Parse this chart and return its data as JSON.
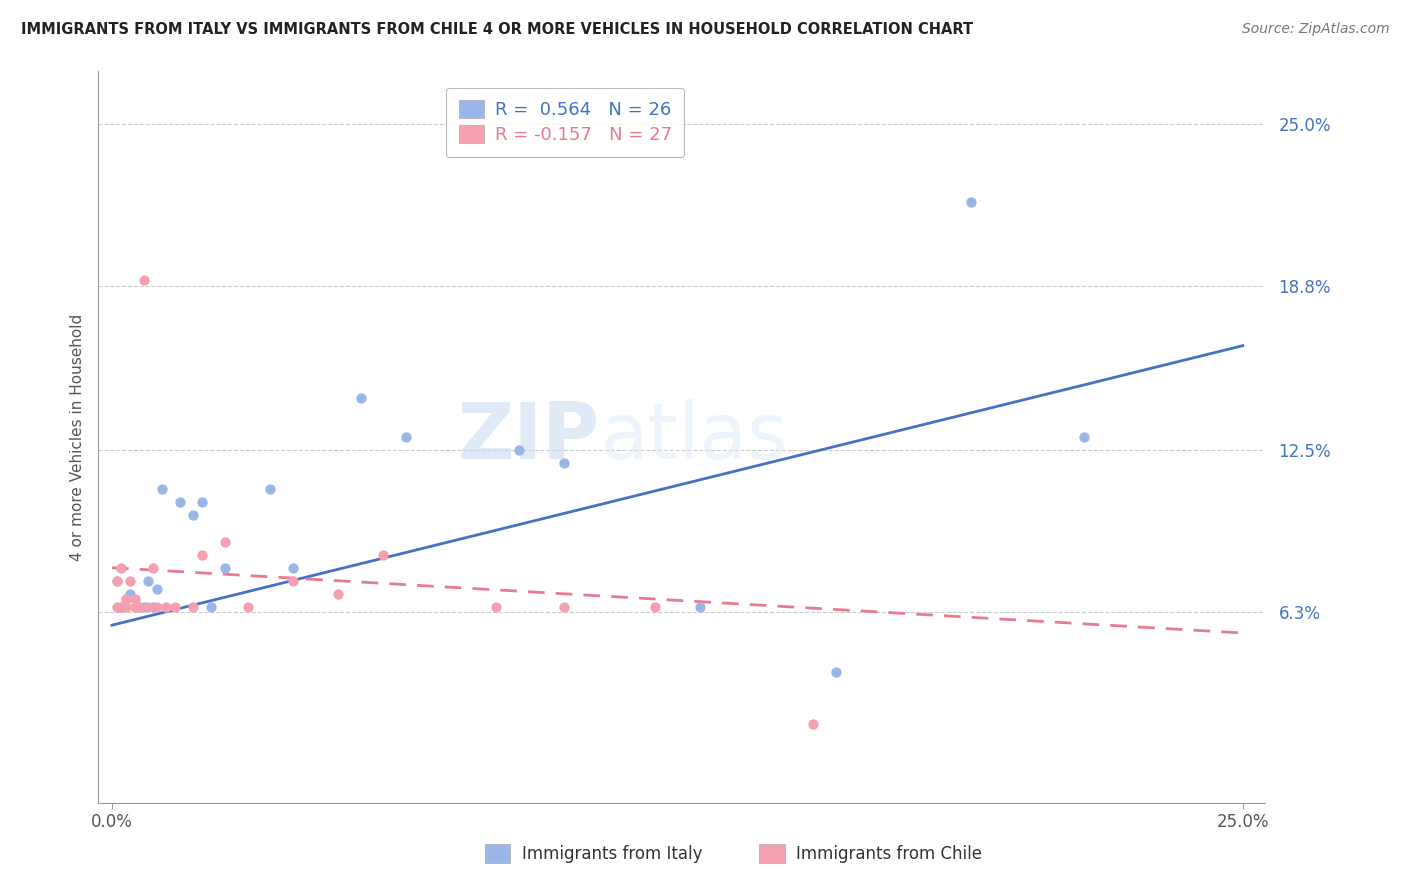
{
  "title": "IMMIGRANTS FROM ITALY VS IMMIGRANTS FROM CHILE 4 OR MORE VEHICLES IN HOUSEHOLD CORRELATION CHART",
  "source": "Source: ZipAtlas.com",
  "ylabel": "4 or more Vehicles in Household",
  "xlabel_italy": "Immigrants from Italy",
  "xlabel_chile": "Immigrants from Chile",
  "xlim": [
    -0.003,
    0.255
  ],
  "ylim": [
    -0.01,
    0.27
  ],
  "ytick_positions": [
    0.063,
    0.125,
    0.188,
    0.25
  ],
  "ytick_labels": [
    "6.3%",
    "12.5%",
    "18.8%",
    "25.0%"
  ],
  "xtick_positions": [
    0.0,
    0.25
  ],
  "xtick_labels": [
    "0.0%",
    "25.0%"
  ],
  "r_italy": 0.564,
  "n_italy": 26,
  "r_chile": -0.157,
  "n_chile": 27,
  "color_italy": "#9ab5e8",
  "color_chile": "#f4a0b0",
  "trendline_italy_color": "#4472c4",
  "trendline_chile_color": "#e87a90",
  "watermark_zip": "ZIP",
  "watermark_atlas": "atlas",
  "italy_x": [
    0.001,
    0.002,
    0.003,
    0.004,
    0.005,
    0.006,
    0.007,
    0.008,
    0.009,
    0.01,
    0.011,
    0.015,
    0.018,
    0.02,
    0.022,
    0.025,
    0.035,
    0.04,
    0.055,
    0.065,
    0.09,
    0.1,
    0.13,
    0.16,
    0.19,
    0.215
  ],
  "italy_y": [
    0.075,
    0.065,
    0.068,
    0.07,
    0.065,
    0.065,
    0.065,
    0.075,
    0.065,
    0.072,
    0.11,
    0.105,
    0.1,
    0.105,
    0.065,
    0.08,
    0.11,
    0.08,
    0.145,
    0.13,
    0.125,
    0.12,
    0.065,
    0.04,
    0.22,
    0.13
  ],
  "chile_x": [
    0.001,
    0.001,
    0.002,
    0.002,
    0.003,
    0.003,
    0.004,
    0.005,
    0.005,
    0.006,
    0.007,
    0.008,
    0.009,
    0.01,
    0.012,
    0.014,
    0.018,
    0.02,
    0.025,
    0.03,
    0.04,
    0.05,
    0.06,
    0.085,
    0.1,
    0.12,
    0.155
  ],
  "chile_y": [
    0.065,
    0.075,
    0.065,
    0.08,
    0.065,
    0.068,
    0.075,
    0.065,
    0.068,
    0.065,
    0.19,
    0.065,
    0.08,
    0.065,
    0.065,
    0.065,
    0.065,
    0.085,
    0.09,
    0.065,
    0.075,
    0.07,
    0.085,
    0.065,
    0.065,
    0.065,
    0.02
  ],
  "italy_trend_x": [
    0.0,
    0.25
  ],
  "italy_trend_y": [
    0.058,
    0.165
  ],
  "chile_trend_x": [
    0.0,
    0.25
  ],
  "chile_trend_y": [
    0.08,
    0.055
  ]
}
